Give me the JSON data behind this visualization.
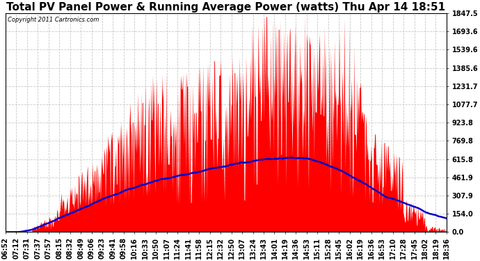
{
  "title": "Total PV Panel Power & Running Average Power (watts) Thu Apr 14 18:51",
  "copyright_text": "Copyright 2011 Cartronics.com",
  "y_tick_values": [
    0.0,
    154.0,
    307.9,
    461.9,
    615.8,
    769.8,
    923.8,
    1077.7,
    1231.7,
    1385.6,
    1539.6,
    1693.6,
    1847.5
  ],
  "y_max": 1847.5,
  "x_labels": [
    "06:52",
    "07:12",
    "07:31",
    "07:37",
    "07:57",
    "08:15",
    "08:32",
    "08:49",
    "09:06",
    "09:23",
    "09:41",
    "09:58",
    "10:16",
    "10:33",
    "10:50",
    "11:07",
    "11:24",
    "11:41",
    "11:58",
    "12:15",
    "12:32",
    "12:50",
    "13:07",
    "13:24",
    "13:43",
    "14:01",
    "14:19",
    "14:36",
    "14:53",
    "15:11",
    "15:28",
    "15:45",
    "16:02",
    "16:19",
    "16:36",
    "16:53",
    "17:10",
    "17:28",
    "17:45",
    "18:02",
    "18:19",
    "18:36"
  ],
  "background_color": "#ffffff",
  "plot_bg_color": "#ffffff",
  "grid_color": "#c8c8c8",
  "fill_color": "#ff0000",
  "line_color": "#0000cc",
  "title_fontsize": 11,
  "axis_fontsize": 7
}
